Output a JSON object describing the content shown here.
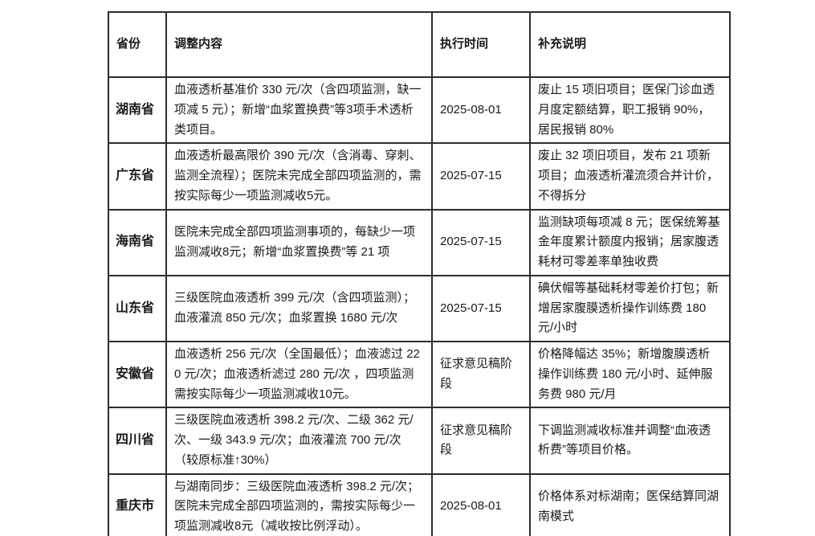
{
  "table": {
    "headers": [
      "省份",
      "调整内容",
      "执行时间",
      "补充说明"
    ],
    "rows": [
      {
        "province": "湖南省",
        "content": "血液透析基准价 330 元/次（含四项监测，缺一项减 5 元）；新增“血浆置换费”等3项手术透析类项目。",
        "time": "2025-08-01",
        "note": "废止 15 项旧项目；医保门诊血透月度定额结算，职工报销 90%，居民报销 80%"
      },
      {
        "province": "广东省",
        "content": "血液透析最高限价 390 元/次（含消毒、穿刺、监测全流程）；医院未完成全部四项监测的，需按实际每少一项监测减收5元。",
        "time": "2025-07-15",
        "note": "废止 32 项旧项目，发布 21 项新项目；血液透析灌流须合并计价，不得拆分"
      },
      {
        "province": "海南省",
        "content": "医院未完成全部四项监测事项的，每缺少一项监测减收8元；新增“血浆置换费”等 21 项",
        "time": "2025-07-15",
        "note": "监测缺项每项减 8 元；医保统筹基金年度累计额度内报销；居家腹透耗材可零差率单独收费"
      },
      {
        "province": "山东省",
        "content": "三级医院血液透析 399 元/次（含四项监测）；血液灌流 850 元/次；血浆置换 1680 元/次",
        "time": "2025-07-15",
        "note": "碘伏帽等基础耗材零差价打包；新增居家腹膜透析操作训练费 180 元/小时"
      },
      {
        "province": "安徽省",
        "content": "血液透析 256 元/次（全国最低）；血液滤过 220 元/次；血液透析滤过 280 元/次 ，四项监测需按实际每少一项监测减收10元。",
        "time": "征求意见稿阶段",
        "note": "价格降幅达 35%；新增腹膜透析操作训练费 180 元/小时、延伸服务费 980 元/月"
      },
      {
        "province": "四川省",
        "content": "三级医院血液透析 398.2 元/次、二级 362 元/次、一级 343.9 元/次；血液灌流 700 元/次（较原标准↑30%）",
        "time": "征求意见稿阶段",
        "note": "下调监测减收标准并调整“血液透析费”等项目价格。"
      },
      {
        "province": "重庆市",
        "content": "与湖南同步：三级医院血液透析 398.2 元/次；医院未完成全部四项监测的，需按实际每少一项监测减收8元（减收按比例浮动）。",
        "time": "2025-08-01",
        "note": "价格体系对标湖南；医保结算同湖南模式"
      }
    ]
  }
}
